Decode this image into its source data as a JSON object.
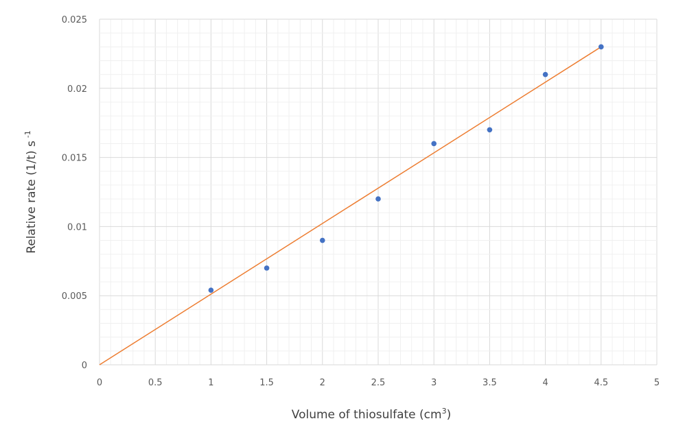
{
  "chart_data": {
    "type": "scatter",
    "title": "",
    "xlabel": "Volume of thiosulfate (cm",
    "xlabel_sup": "3",
    "xlabel_end": ")",
    "ylabel": "Relative rate (1/t) s",
    "ylabel_sup": "-1",
    "xlim": [
      0,
      5
    ],
    "ylim": [
      0,
      0.025
    ],
    "x_ticks": [
      "0",
      "0.5",
      "1",
      "1.5",
      "2",
      "2.5",
      "3",
      "3.5",
      "4",
      "4.5",
      "5"
    ],
    "y_ticks": [
      "0",
      "0.005",
      "0.01",
      "0.015",
      "0.02",
      "0.025"
    ],
    "grid": true,
    "minor_grid": true,
    "legend": "none",
    "series": [
      {
        "marker_color": "#4472c4",
        "points": [
          {
            "x": 1,
            "y": 0.0054
          },
          {
            "x": 1.5,
            "y": 0.007
          },
          {
            "x": 2,
            "y": 0.009
          },
          {
            "x": 2.5,
            "y": 0.012
          },
          {
            "x": 3,
            "y": 0.016
          },
          {
            "x": 3.5,
            "y": 0.017
          },
          {
            "x": 4,
            "y": 0.021
          },
          {
            "x": 4.5,
            "y": 0.023
          }
        ]
      }
    ],
    "best_fit_line": {
      "color": "#ed7d31",
      "from": {
        "x": 0,
        "y": 0
      },
      "to": {
        "x": 4.5,
        "y": 0.023
      }
    }
  }
}
